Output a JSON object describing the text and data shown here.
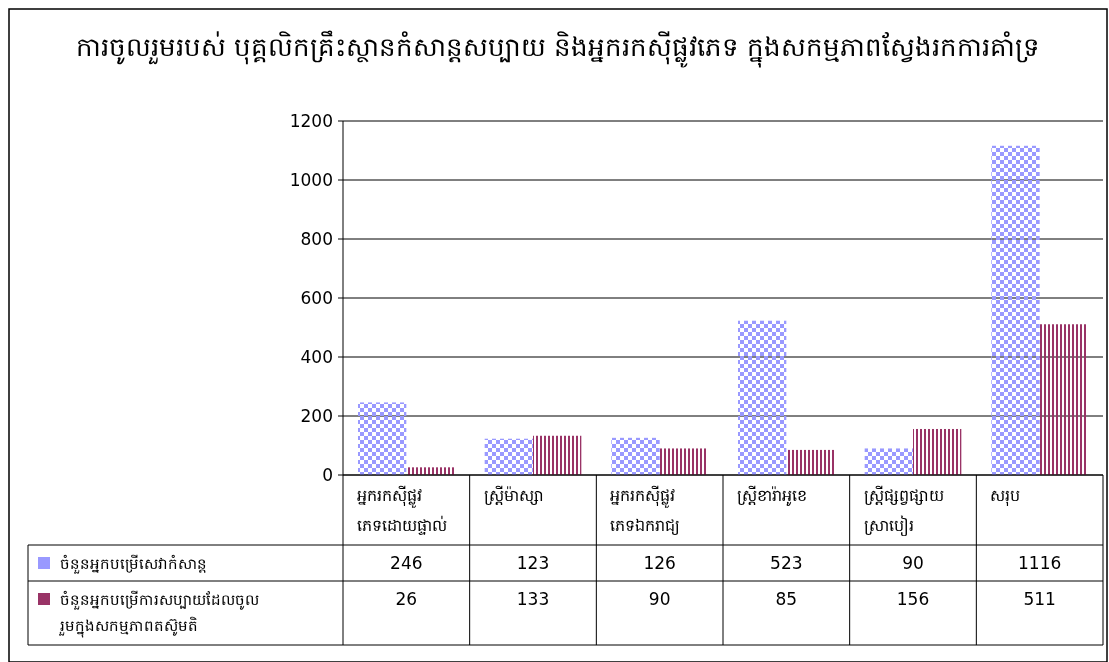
{
  "chart_data": {
    "type": "bar",
    "title": "ការចូលរួមរបស់ បុគ្គលិកគ្រឹះស្ថានកំសាន្តសប្បាយ និងអ្នករកស៊ីផ្លូវភេទ ក្នុងសកម្មភាពស្វែងរកការគាំទ្រ",
    "categories": [
      "អ្នករកស៊ីផ្លូវ\nភេទដោយផ្ទាល់",
      "ស្ត្រីម៉ាស្សា",
      "អ្នករកស៊ីផ្លូវ\nភេទឯករាជ្យ",
      "ស្ត្រីខារ៉ាអូខេ",
      "ស្ត្រីផ្សព្វផ្សាយ\nស្រាបៀរ",
      "សរុប"
    ],
    "series": [
      {
        "name": "ចំនួនអ្នកបម្រើសេវាកំសាន្ត",
        "color": "#9999ff",
        "values": [
          246,
          123,
          126,
          523,
          90,
          1116
        ]
      },
      {
        "name": "ចំនួនអ្នកបម្រើការសប្បាយដែលចូល\nរួមក្នុងសកម្មភាពតស៊ូមតិ",
        "color": "#993366",
        "values": [
          26,
          133,
          90,
          85,
          156,
          511
        ]
      }
    ],
    "ylim": [
      0,
      1200
    ],
    "yticks": [
      0,
      200,
      400,
      600,
      800,
      1000,
      1200
    ],
    "grid": "y",
    "legend": "bottom",
    "data_labels": true
  }
}
